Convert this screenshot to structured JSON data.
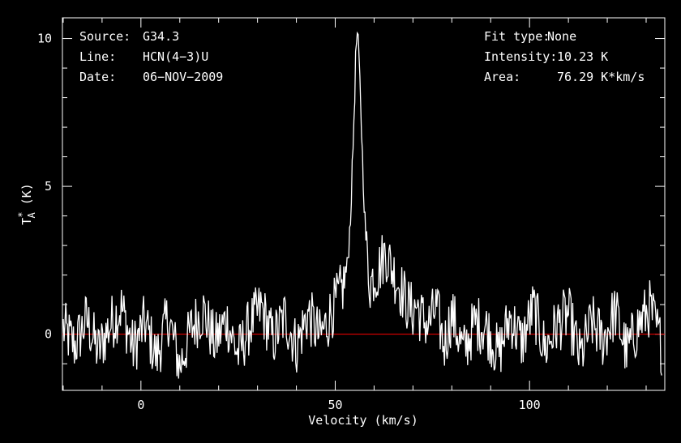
{
  "chart_data": {
    "type": "line",
    "xlabel": "Velocity (km/s)",
    "ylabel": "T",
    "ylabel_sup": "*",
    "ylabel_sub": "A",
    "ylabel_unit": " (K)",
    "xlim": [
      -20.2,
      134.8
    ],
    "ylim": [
      -1.9,
      10.7
    ],
    "xticks": [
      0,
      50,
      100
    ],
    "yticks": [
      0,
      5,
      10
    ],
    "baseline": 0,
    "colors": {
      "spectrum": "#ffffff",
      "baseline": "#ff0000",
      "axes": "#ffffff",
      "background": "#000000"
    },
    "series": [
      {
        "x": [
          -20,
          -17,
          -14,
          -11,
          -8,
          -5,
          -2,
          1,
          4,
          7,
          10,
          13,
          16,
          19,
          22,
          25,
          28,
          31,
          34,
          37,
          40,
          43,
          46,
          48,
          49,
          50,
          51,
          52,
          53,
          53.5,
          54,
          54.5,
          55,
          55.3,
          55.6,
          56,
          56.5,
          57,
          57.5,
          58,
          58.5,
          59,
          60,
          61,
          62,
          63,
          64,
          65,
          66,
          67,
          68,
          69,
          70,
          71,
          72,
          74,
          76,
          78,
          80,
          83,
          86,
          89,
          92,
          95,
          98,
          101,
          104,
          107,
          110,
          113,
          116,
          119,
          122,
          125,
          128,
          131,
          134
        ],
        "y": [
          0.2,
          -0.4,
          0.5,
          -0.6,
          0.3,
          0.9,
          -0.5,
          0.4,
          -0.8,
          0.6,
          -1.1,
          0.2,
          0.8,
          -0.3,
          0.5,
          -0.7,
          0.3,
          0.9,
          -0.2,
          0.6,
          -0.4,
          0.7,
          -0.1,
          0.4,
          0.8,
          1.0,
          1.3,
          1.6,
          2.2,
          3.0,
          4.2,
          6.0,
          8.1,
          9.5,
          10.2,
          9.6,
          8.0,
          6.0,
          4.3,
          2.9,
          2.2,
          1.7,
          2.0,
          2.1,
          2.5,
          2.8,
          2.4,
          2.1,
          1.8,
          1.5,
          1.2,
          0.9,
          0.8,
          1.0,
          0.6,
          0.3,
          0.9,
          -0.4,
          0.7,
          -0.6,
          0.4,
          0.2,
          -0.7,
          0.6,
          -0.3,
          0.9,
          -0.5,
          0.3,
          0.7,
          -0.8,
          0.4,
          -0.2,
          0.8,
          -0.6,
          0.3,
          0.9,
          -0.4
        ]
      }
    ]
  },
  "info_left": [
    {
      "key": "Source:",
      "value": "G34.3"
    },
    {
      "key": "Line:",
      "value": "HCN(4−3)U"
    },
    {
      "key": "Date:",
      "value": "06−NOV−2009"
    }
  ],
  "info_right": [
    {
      "key": "Fit type:",
      "value": "None"
    },
    {
      "key": "Intensity:",
      "value": "10.23 K"
    },
    {
      "key": "Area:",
      "value": "76.29 K*km/s"
    }
  ]
}
